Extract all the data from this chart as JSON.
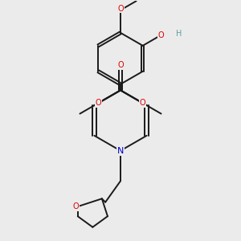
{
  "bg_color": "#ebebeb",
  "bond_color": "#1a1a1a",
  "bond_width": 1.4,
  "dbo": 0.018,
  "atom_colors": {
    "O": "#dd0000",
    "N": "#0000cc",
    "H": "#5f9ea0",
    "C": "#1a1a1a"
  },
  "font_size": 7.0,
  "figsize": [
    3.0,
    3.0
  ],
  "dpi": 100
}
